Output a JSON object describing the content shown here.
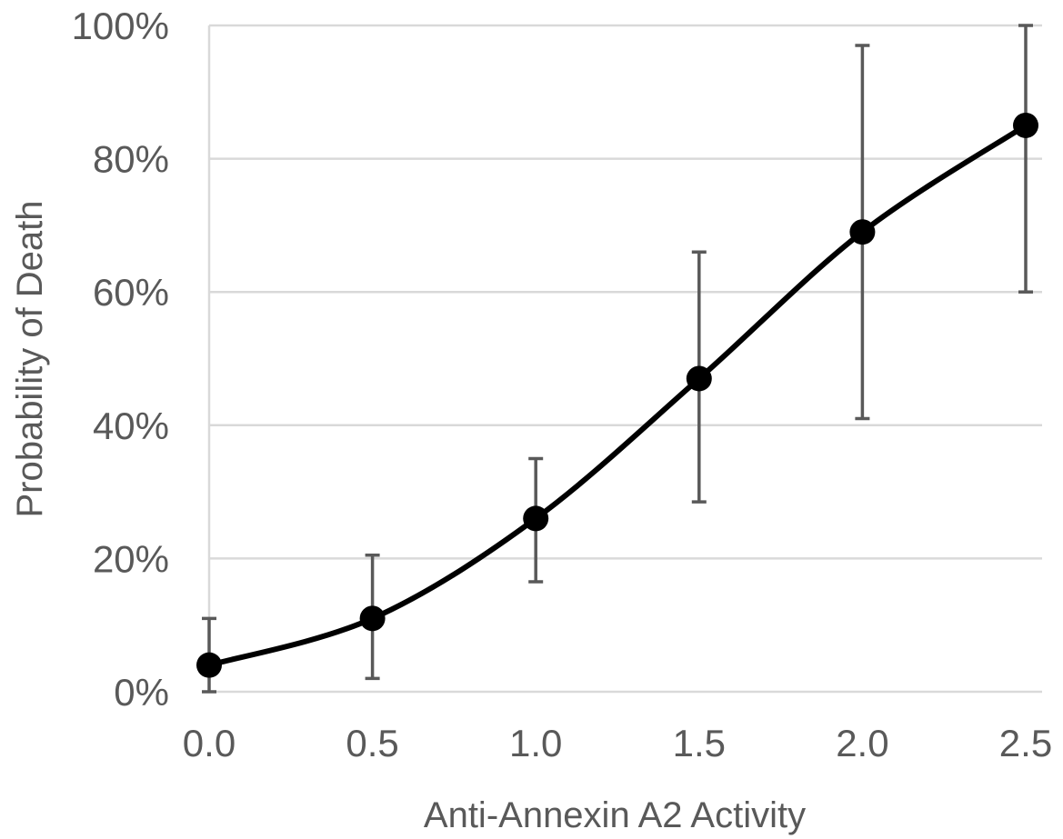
{
  "chart_data": {
    "type": "line",
    "title": "",
    "xlabel": "Anti-Annexin A2 Activity",
    "ylabel": "Probability of Death",
    "x": [
      0.0,
      0.5,
      1.0,
      1.5,
      2.0,
      2.5
    ],
    "x_tick_labels": [
      "0.0",
      "0.5",
      "1.0",
      "1.5",
      "2.0",
      "2.5"
    ],
    "y_tick_labels": [
      "0%",
      "20%",
      "40%",
      "60%",
      "80%",
      "100%"
    ],
    "xlim": [
      0.0,
      2.5
    ],
    "ylim": [
      0,
      100
    ],
    "grid": "horizontal",
    "smooth": true,
    "series": [
      {
        "values": [
          4,
          11,
          26,
          47,
          69,
          85
        ],
        "error_low": [
          0,
          2,
          16.5,
          28.5,
          41,
          60
        ],
        "error_high": [
          11,
          20.5,
          35,
          66,
          97,
          100
        ],
        "color": "#000000",
        "error_color": "#595959"
      }
    ]
  }
}
